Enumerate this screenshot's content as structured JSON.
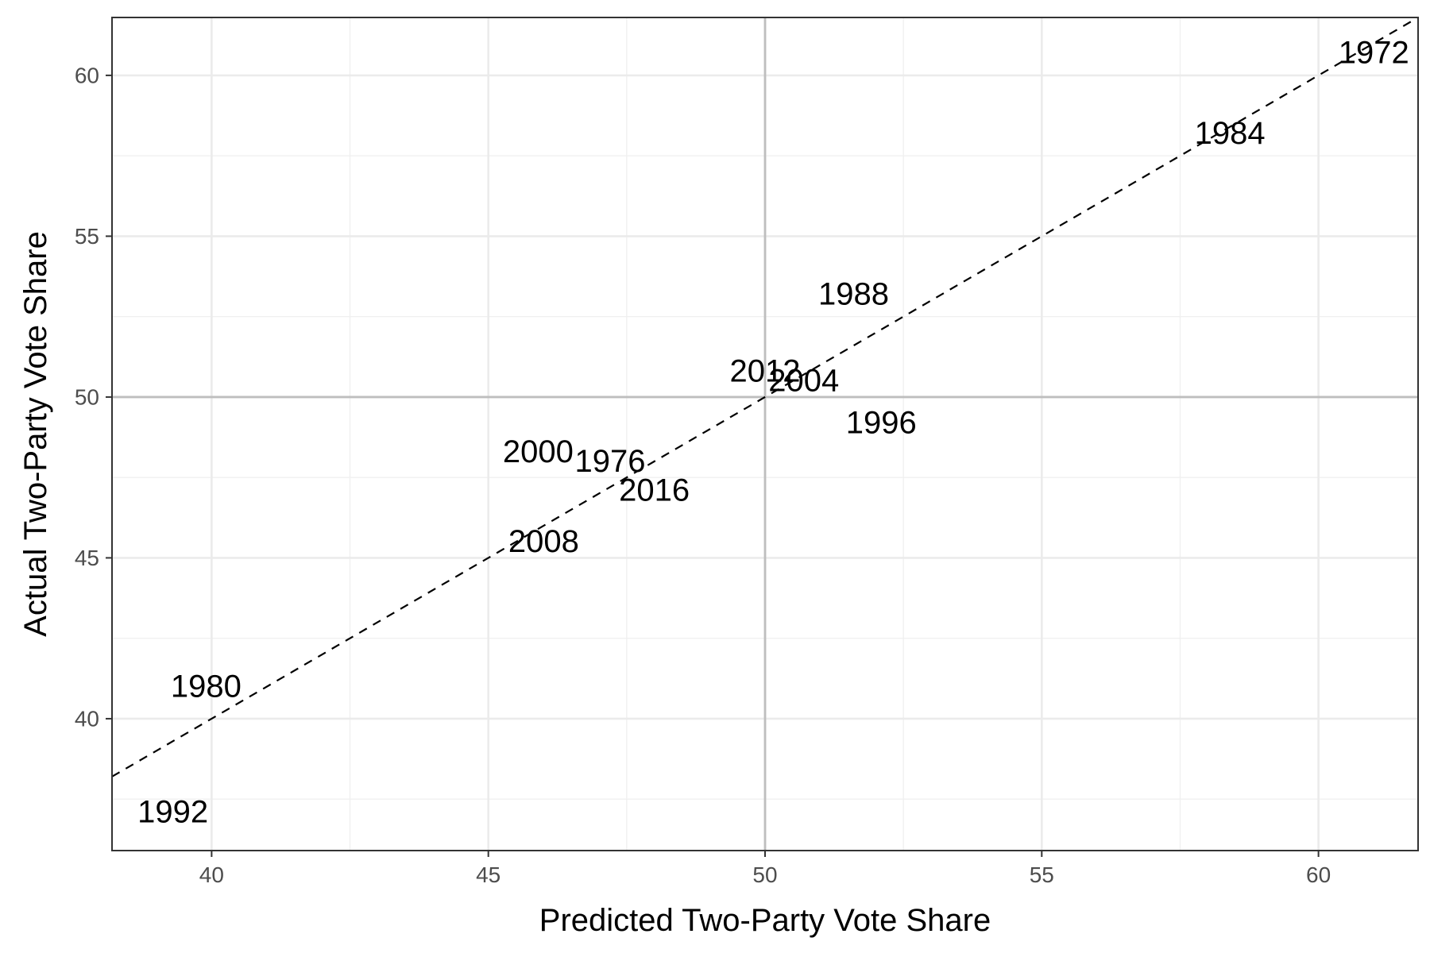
{
  "chart_data": {
    "type": "scatter",
    "title": "",
    "xlabel": "Predicted Two-Party Vote Share",
    "ylabel": "Actual Two-Party Vote Share",
    "xlim": [
      38.2,
      61.8
    ],
    "ylim": [
      35.9,
      61.8
    ],
    "x_ticks": [
      40,
      45,
      50,
      55,
      60
    ],
    "y_ticks": [
      40,
      45,
      50,
      55,
      60
    ],
    "grid": true,
    "reference_lines": {
      "x": 50,
      "y": 50
    },
    "fit_line": {
      "style": "dashed",
      "slope": 1,
      "intercept": 0
    },
    "points": [
      {
        "label": "1972",
        "x": 61.0,
        "y": 60.7
      },
      {
        "label": "1976",
        "x": 47.2,
        "y": 48.0
      },
      {
        "label": "1980",
        "x": 39.9,
        "y": 41.0
      },
      {
        "label": "1984",
        "x": 58.4,
        "y": 58.2
      },
      {
        "label": "1988",
        "x": 51.6,
        "y": 53.2
      },
      {
        "label": "1992",
        "x": 39.3,
        "y": 37.1
      },
      {
        "label": "1996",
        "x": 52.1,
        "y": 49.2
      },
      {
        "label": "2000",
        "x": 45.9,
        "y": 48.3
      },
      {
        "label": "2004",
        "x": 50.7,
        "y": 50.5
      },
      {
        "label": "2008",
        "x": 46.0,
        "y": 45.5
      },
      {
        "label": "2012",
        "x": 50.0,
        "y": 50.8
      },
      {
        "label": "2016",
        "x": 48.0,
        "y": 47.1
      }
    ]
  }
}
